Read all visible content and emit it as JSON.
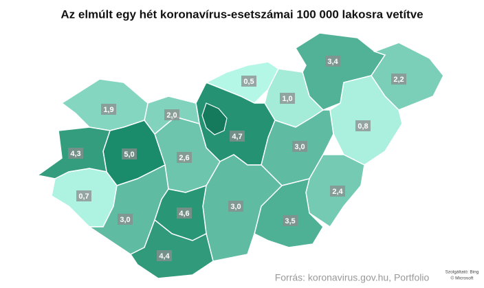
{
  "chart_data": {
    "type": "choropleth",
    "title": "Az elmúlt egy hét koronavírus-esetszámai 100 000 lakosra vetítve",
    "categories": [
      null,
      null,
      null,
      null,
      null,
      null,
      null,
      null,
      null,
      null,
      null,
      null,
      null,
      null,
      null,
      null,
      null,
      null,
      null
    ],
    "values": [
      3.4,
      2.2,
      0.8,
      0.5,
      1.0,
      4.7,
      3.0,
      2.4,
      3.5,
      3.0,
      2.6,
      2.0,
      1.9,
      5.0,
      4.3,
      0.7,
      3.0,
      4.6,
      4.4
    ],
    "value_labels": [
      "3,4",
      "2,2",
      "0,8",
      "0,5",
      "1,0",
      "4,7",
      "3,0",
      "2,4",
      "3,5",
      "3,0",
      "2,6",
      "2,0",
      "1,9",
      "5,0",
      "4,3",
      "0,7",
      "3,0",
      "4,6",
      "4,4"
    ],
    "color_scale": [
      "#b5f7e6",
      "#1b8c6b"
    ],
    "source": "Forrás: koronavirus.gov.hu, Portfolio",
    "attribution": [
      "Szolgáltató: Bing",
      "© Microsoft"
    ]
  }
}
